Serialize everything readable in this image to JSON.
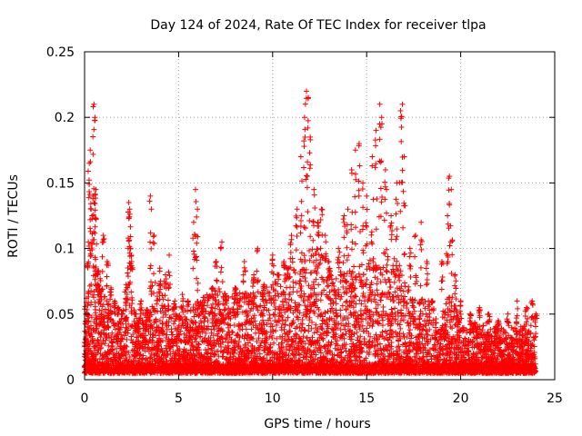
{
  "chart_data": {
    "type": "scatter",
    "title": "Day 124 of 2024, Rate Of TEC Index for receiver tlpa",
    "xlabel": "GPS time / hours",
    "ylabel": "ROTI / TECUs",
    "xlim": [
      0,
      25
    ],
    "ylim": [
      0,
      0.25
    ],
    "x_ticks": [
      "0",
      "5",
      "10",
      "15",
      "20",
      "25"
    ],
    "y_ticks": [
      "0",
      "0.05",
      "0.1",
      "0.15",
      "0.2",
      "0.25"
    ],
    "grid": true,
    "marker": "plus",
    "colors": {
      "series": "#ff0000",
      "axis": "#000000",
      "grid": "#a0a0a0"
    },
    "series": [
      {
        "points": [
          [
            0.05,
            0.01
          ],
          [
            0.1,
            0.02
          ],
          [
            0.15,
            0.04
          ],
          [
            0.2,
            0.105
          ],
          [
            0.25,
            0.165
          ],
          [
            0.3,
            0.175
          ],
          [
            0.35,
            0.13
          ],
          [
            0.4,
            0.125
          ],
          [
            0.45,
            0.14
          ],
          [
            0.5,
            0.21
          ],
          [
            0.55,
            0.2
          ],
          [
            0.6,
            0.145
          ],
          [
            0.7,
            0.08
          ],
          [
            0.8,
            0.06
          ],
          [
            0.9,
            0.05
          ],
          [
            1.0,
            0.11
          ],
          [
            1.2,
            0.09
          ],
          [
            1.4,
            0.07
          ],
          [
            1.6,
            0.06
          ],
          [
            1.8,
            0.055
          ],
          [
            2.0,
            0.05
          ],
          [
            2.2,
            0.045
          ],
          [
            2.35,
            0.135
          ],
          [
            2.4,
            0.13
          ],
          [
            2.45,
            0.1
          ],
          [
            2.5,
            0.09
          ],
          [
            2.7,
            0.05
          ],
          [
            3.0,
            0.06
          ],
          [
            3.3,
            0.05
          ],
          [
            3.5,
            0.14
          ],
          [
            3.55,
            0.13
          ],
          [
            3.7,
            0.11
          ],
          [
            4.0,
            0.085
          ],
          [
            4.3,
            0.08
          ],
          [
            4.5,
            0.095
          ],
          [
            4.8,
            0.06
          ],
          [
            5.2,
            0.065
          ],
          [
            5.5,
            0.06
          ],
          [
            5.8,
            0.12
          ],
          [
            5.9,
            0.145
          ],
          [
            6.0,
            0.13
          ],
          [
            6.3,
            0.05
          ],
          [
            6.8,
            0.07
          ],
          [
            7.0,
            0.09
          ],
          [
            7.3,
            0.105
          ],
          [
            7.5,
            0.06
          ],
          [
            8.0,
            0.07
          ],
          [
            8.5,
            0.09
          ],
          [
            9.0,
            0.08
          ],
          [
            9.2,
            0.1
          ],
          [
            9.5,
            0.06
          ],
          [
            10.0,
            0.095
          ],
          [
            10.3,
            0.08
          ],
          [
            10.6,
            0.09
          ],
          [
            11.0,
            0.11
          ],
          [
            11.3,
            0.13
          ],
          [
            11.5,
            0.17
          ],
          [
            11.7,
            0.2
          ],
          [
            11.8,
            0.22
          ],
          [
            11.9,
            0.215
          ],
          [
            12.0,
            0.185
          ],
          [
            12.2,
            0.145
          ],
          [
            12.4,
            0.12
          ],
          [
            12.6,
            0.13
          ],
          [
            12.8,
            0.11
          ],
          [
            13.0,
            0.09
          ],
          [
            13.5,
            0.1
          ],
          [
            13.8,
            0.125
          ],
          [
            14.0,
            0.13
          ],
          [
            14.2,
            0.16
          ],
          [
            14.4,
            0.175
          ],
          [
            14.6,
            0.18
          ],
          [
            14.8,
            0.15
          ],
          [
            15.0,
            0.14
          ],
          [
            15.3,
            0.17
          ],
          [
            15.5,
            0.19
          ],
          [
            15.7,
            0.21
          ],
          [
            15.8,
            0.2
          ],
          [
            16.0,
            0.16
          ],
          [
            16.3,
            0.125
          ],
          [
            16.6,
            0.15
          ],
          [
            16.8,
            0.205
          ],
          [
            16.9,
            0.21
          ],
          [
            17.0,
            0.17
          ],
          [
            17.3,
            0.1
          ],
          [
            17.6,
            0.11
          ],
          [
            17.9,
            0.12
          ],
          [
            18.2,
            0.09
          ],
          [
            18.5,
            0.06
          ],
          [
            19.0,
            0.09
          ],
          [
            19.3,
            0.125
          ],
          [
            19.4,
            0.155
          ],
          [
            19.5,
            0.145
          ],
          [
            19.7,
            0.08
          ],
          [
            20.0,
            0.06
          ],
          [
            20.5,
            0.05
          ],
          [
            21.0,
            0.055
          ],
          [
            21.5,
            0.05
          ],
          [
            22.0,
            0.045
          ],
          [
            22.5,
            0.05
          ],
          [
            23.0,
            0.06
          ],
          [
            23.5,
            0.055
          ],
          [
            23.8,
            0.06
          ],
          [
            24.0,
            0.05
          ]
        ],
        "background": {
          "baseline": [
            0.005,
            0.012
          ],
          "envelope": [
            [
              0,
              0.055
            ],
            [
              0.5,
              0.1
            ],
            [
              1,
              0.065
            ],
            [
              1.5,
              0.055
            ],
            [
              2,
              0.05
            ],
            [
              2.4,
              0.1
            ],
            [
              2.7,
              0.05
            ],
            [
              3.5,
              0.055
            ],
            [
              4,
              0.07
            ],
            [
              4.5,
              0.06
            ],
            [
              5,
              0.05
            ],
            [
              6,
              0.06
            ],
            [
              7,
              0.07
            ],
            [
              8,
              0.065
            ],
            [
              9,
              0.07
            ],
            [
              10,
              0.075
            ],
            [
              11,
              0.09
            ],
            [
              11.8,
              0.1
            ],
            [
              12.5,
              0.1
            ],
            [
              13,
              0.08
            ],
            [
              14,
              0.085
            ],
            [
              15,
              0.09
            ],
            [
              16,
              0.1
            ],
            [
              16.8,
              0.09
            ],
            [
              17.5,
              0.06
            ],
            [
              18,
              0.065
            ],
            [
              19,
              0.05
            ],
            [
              19.5,
              0.07
            ],
            [
              20,
              0.04
            ],
            [
              21,
              0.045
            ],
            [
              22,
              0.04
            ],
            [
              23,
              0.04
            ],
            [
              24,
              0.045
            ]
          ]
        }
      }
    ]
  }
}
